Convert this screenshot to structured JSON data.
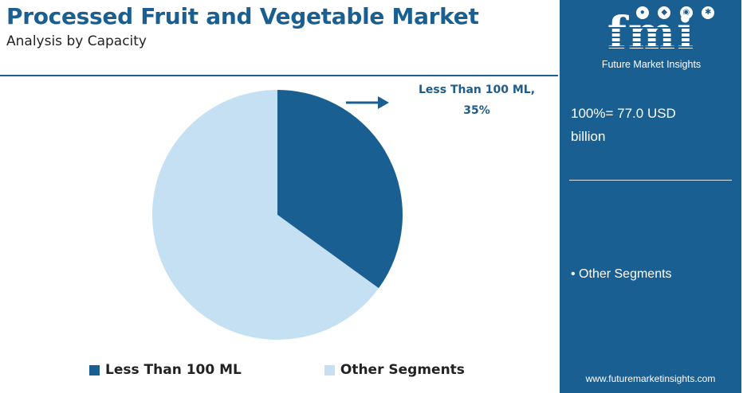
{
  "header": {
    "title": "Processed Fruit and Vegetable Market",
    "subtitle": "Analysis by Capacity"
  },
  "chart_data": {
    "type": "pie",
    "title": "Processed Fruit and Vegetable Market",
    "subtitle": "Analysis by Capacity",
    "slices": [
      {
        "label": "Less Than 100 ML",
        "value": 35,
        "color": "#1a5f91"
      },
      {
        "label": "Other Segments",
        "value": 65,
        "color": "#c5e0f2"
      }
    ],
    "callout": {
      "line1": "Less Than 100 ML,",
      "line2": "35%"
    },
    "legend": [
      "Less Than 100 ML",
      "Other Segments"
    ],
    "legend_position": "bottom"
  },
  "sidebar": {
    "logo_text": "fmi",
    "logo_tagline": "Future Market Insights",
    "total_line1": "100%= 77.0 USD",
    "total_line2": "billion",
    "bullet": "• Other Segments",
    "url": "www.futuremarketinsights.com"
  },
  "colors": {
    "brand": "#1a5f91",
    "light_slice": "#c5e0f2"
  }
}
